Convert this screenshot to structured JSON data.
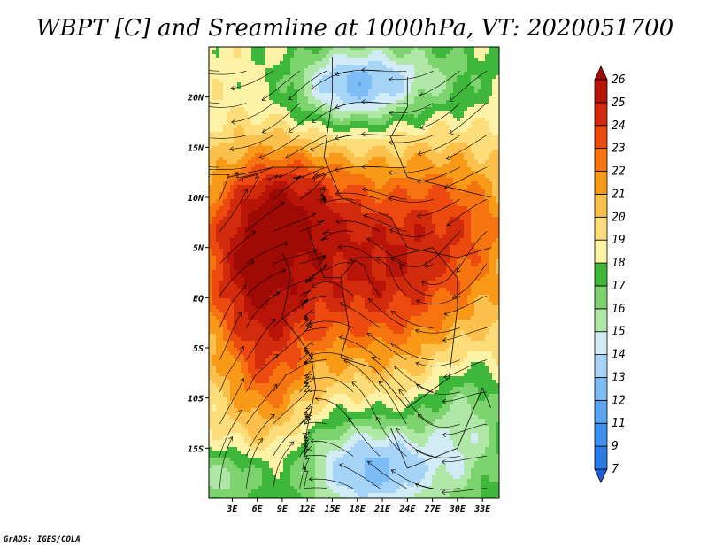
{
  "chart_data": {
    "type": "heatmap",
    "title": "WBPT [C] and Sreamline at 1000hPa, VT: 2020051700",
    "variable": "Wet-bulb potential temperature",
    "units": "C",
    "level": "1000hPa",
    "valid_time": "2020051700",
    "x_ticks": [
      "3E",
      "6E",
      "9E",
      "12E",
      "15E",
      "18E",
      "21E",
      "24E",
      "27E",
      "30E",
      "33E"
    ],
    "x_tick_values": [
      3,
      6,
      9,
      12,
      15,
      18,
      21,
      24,
      27,
      30,
      33
    ],
    "y_ticks": [
      "20N",
      "15N",
      "10N",
      "5N",
      "EQ",
      "5S",
      "10S",
      "15S"
    ],
    "y_tick_values": [
      20,
      15,
      10,
      5,
      0,
      -5,
      -10,
      -15
    ],
    "xlim": [
      0.2,
      35
    ],
    "ylim": [
      -20,
      25
    ],
    "colorbar": {
      "levels": [
        "7",
        "9",
        "11",
        "12",
        "13",
        "14",
        "15",
        "16",
        "17",
        "18",
        "19",
        "20",
        "21",
        "22",
        "23",
        "24",
        "25",
        "26"
      ],
      "colors": [
        "#1f5fd6",
        "#2c7ae6",
        "#3f8ff0",
        "#5aa6f3",
        "#7dbcf5",
        "#a6d4f7",
        "#d2ecf6",
        "#aee7a6",
        "#7dd46e",
        "#3fb73a",
        "#fdf2a5",
        "#fddc7a",
        "#fbc14c",
        "#f89a18",
        "#f57410",
        "#ec4a0e",
        "#d22a0c",
        "#b81408",
        "#a00a04"
      ]
    },
    "overlay": "streamlines"
  },
  "footer": {
    "credit": "GrADS: IGES/COLA"
  }
}
